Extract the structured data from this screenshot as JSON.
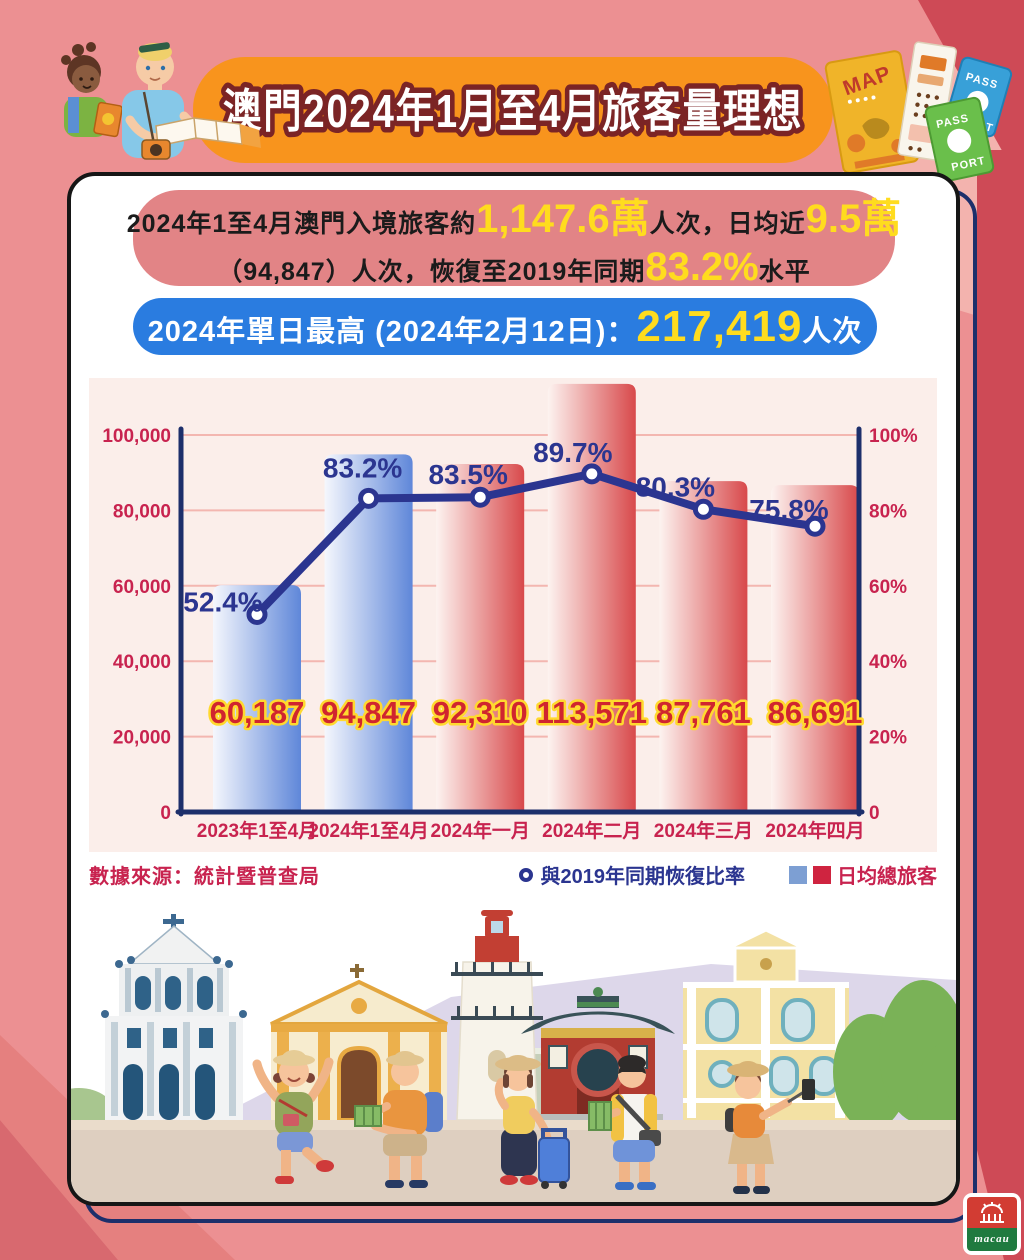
{
  "page": {
    "title": "澳門2024年1月至4月旅客量理想"
  },
  "summary": {
    "seg1": "2024年1至4月澳門入境旅客約",
    "num1": "1,147.6萬",
    "seg2": "人次，日均近",
    "num2": "9.5萬",
    "seg3": "（94,847）人次，恢復至2019年同期",
    "num3": "83.2%",
    "seg4": "水平"
  },
  "record": {
    "label": "2024年單日最高 (2024年2月12日)：",
    "value": "217,419",
    "unit": "人次"
  },
  "chart_data": {
    "type": "bar+line combo",
    "categories": [
      "2023年1至4月",
      "2024年1至4月",
      "2024年一月",
      "2024年二月",
      "2024年三月",
      "2024年四月"
    ],
    "series": [
      {
        "name": "日均總旅客",
        "type": "bar",
        "values": [
          60187,
          94847,
          92310,
          113571,
          87761,
          86691
        ],
        "labels": [
          "60,187",
          "94,847",
          "92,310",
          "113,571",
          "87,761",
          "86,691"
        ],
        "bar_styles": [
          "blue",
          "blue",
          "red",
          "red",
          "red",
          "red"
        ]
      },
      {
        "name": "與2019年同期恢復比率",
        "type": "line",
        "values": [
          52.4,
          83.2,
          83.5,
          89.7,
          80.3,
          75.8
        ],
        "labels": [
          "52.4%",
          "83.2%",
          "83.5%",
          "89.7%",
          "80.3%",
          "75.8%"
        ]
      }
    ],
    "left_axis": {
      "max": 100000,
      "ticks": [
        "0",
        "20,000",
        "40,000",
        "60,000",
        "80,000",
        "100,000"
      ]
    },
    "right_axis": {
      "max": 100,
      "ticks": [
        "0",
        "20%",
        "40%",
        "60%",
        "80%",
        "100%"
      ]
    },
    "grid": true,
    "legend_position": "bottom",
    "source": "數據來源：統計暨普查局"
  },
  "decor": {
    "map_label": "MAP",
    "passport_pass": "PASS",
    "passport_port": "PORT"
  },
  "logo": {
    "text": "macau"
  },
  "colors": {
    "bg": "#ec9092",
    "bg-dark": "#ce4a56",
    "bg-light": "#f3b3ae",
    "orange": "#f8941d",
    "banner-red": "#e28486",
    "banner-blue": "#2a7ce0",
    "yellow": "#ffdc1e",
    "navy": "#1d2f6b",
    "line": "#2b3590",
    "crimson": "#c8234f",
    "bar-blue": "#5f87d9",
    "bar-red": "#d8494b",
    "panel": "#fbeeea"
  }
}
